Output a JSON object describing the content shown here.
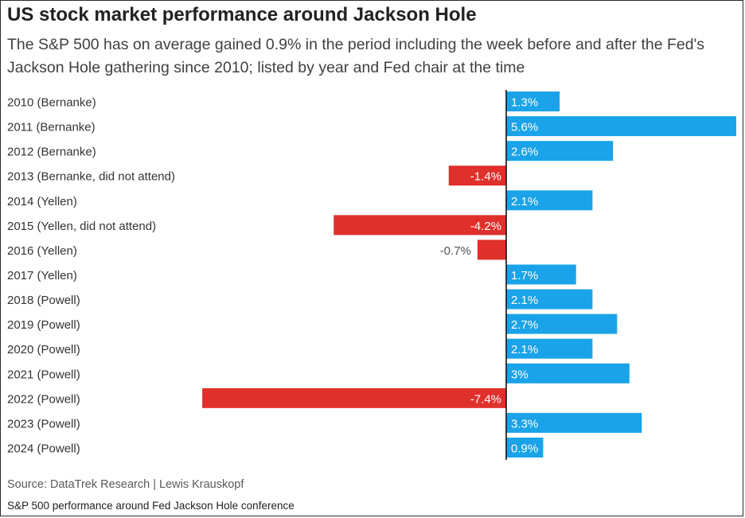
{
  "title": "US stock market performance around Jackson Hole",
  "subtitle": "The S&P 500 has on average gained 0.9% in the period including the week before and after the Fed's Jackson Hole gathering since 2010; listed by year and Fed chair at the time",
  "source": "Source: DataTrek Research | Lewis Krauskopf",
  "caption": "S&P 500 performance around Fed Jackson Hole conference",
  "colors": {
    "positive": "#1aa3e8",
    "negative": "#e0302c",
    "axis": "#111111"
  },
  "chart_data": {
    "type": "bar",
    "orientation": "horizontal",
    "categories": [
      "2010 (Bernanke)",
      "2011 (Bernanke)",
      "2012 (Bernanke)",
      "2013 (Bernanke, did not attend)",
      "2014 (Yellen)",
      "2015 (Yellen, did not attend)",
      "2016 (Yellen)",
      "2017 (Yellen)",
      "2018 (Powell)",
      "2019 (Powell)",
      "2020 (Powell)",
      "2021 (Powell)",
      "2022 (Powell)",
      "2023 (Powell)",
      "2024 (Powell)"
    ],
    "values": [
      1.3,
      5.6,
      2.6,
      -1.4,
      2.1,
      -4.2,
      -0.7,
      1.7,
      2.1,
      2.7,
      2.1,
      3,
      -7.4,
      3.3,
      0.9
    ],
    "data_labels": [
      "1.3%",
      "5.6%",
      "2.6%",
      "-1.4%",
      "2.1%",
      "-4.2%",
      "-0.7%",
      "1.7%",
      "2.1%",
      "2.7%",
      "2.1%",
      "3%",
      "-7.4%",
      "3.3%",
      "0.9%"
    ],
    "xlim": [
      -7.4,
      5.6
    ],
    "grid": false,
    "legend": "none"
  }
}
